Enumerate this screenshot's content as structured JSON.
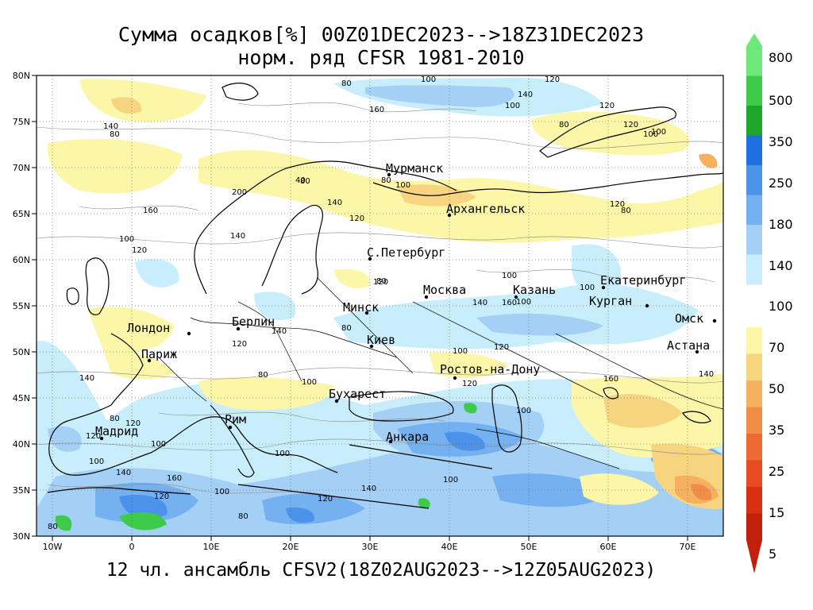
{
  "title_line1": "Сумма осадков[%] 00Z01DEC2023-->18Z31DEC2023",
  "title_line2": "норм. ряд CFSR 1981-2010",
  "subtitle": "12 чл. ансамбль CFSV2(18Z02AUG2023-->12Z05AUG2023)",
  "lat_labels": [
    "80N",
    "75N",
    "70N",
    "65N",
    "60N",
    "55N",
    "50N",
    "45N",
    "40N",
    "35N",
    "30N"
  ],
  "lon_labels": [
    "10W",
    "0",
    "10E",
    "20E",
    "30E",
    "40E",
    "50E",
    "60E",
    "70E"
  ],
  "cities": [
    {
      "name": "Мурманск"
    },
    {
      "name": "Архангельск"
    },
    {
      "name": "С.Петербург"
    },
    {
      "name": "Москва"
    },
    {
      "name": "Казань"
    },
    {
      "name": "Екатеринбург"
    },
    {
      "name": "Курган"
    },
    {
      "name": "Омск"
    },
    {
      "name": "Астана"
    },
    {
      "name": "Минск"
    },
    {
      "name": "Берлин"
    },
    {
      "name": "Лондон"
    },
    {
      "name": "Париж"
    },
    {
      "name": "Киев"
    },
    {
      "name": "Ростов-на-Дону"
    },
    {
      "name": "Бухарест"
    },
    {
      "name": "Рим"
    },
    {
      "name": "Мадрид"
    },
    {
      "name": "Анкара"
    }
  ],
  "contour_labels": [
    "100",
    "120",
    "140",
    "160",
    "80",
    "100",
    "120",
    "140",
    "80",
    "100",
    "120",
    "80",
    "100",
    "80",
    "100",
    "120",
    "140",
    "160",
    "200",
    "40",
    "80",
    "100",
    "120",
    "140",
    "80",
    "100",
    "120",
    "140",
    "160",
    "100",
    "80",
    "120",
    "100",
    "140",
    "120",
    "80",
    "100",
    "120",
    "140",
    "160",
    "100",
    "120",
    "80",
    "100",
    "140",
    "120",
    "100",
    "80",
    "120",
    "100",
    "140",
    "160",
    "120",
    "100",
    "80",
    "100",
    "120",
    "140",
    "100",
    "80"
  ],
  "colorbar": {
    "upper_levels": [
      "800",
      "500",
      "350",
      "250",
      "180",
      "140"
    ],
    "middle_level": "100",
    "lower_levels": [
      "70",
      "50",
      "35",
      "25",
      "15",
      "5"
    ],
    "upper_colors": [
      "#6ee87a",
      "#3fcb4a",
      "#1ea62b",
      "#1f6fe0",
      "#4a92ea",
      "#75b1f0",
      "#a5d0f6",
      "#c8edfb"
    ],
    "lower_colors": [
      "#fbf6a8",
      "#f7d580",
      "#f5b060",
      "#f28d48",
      "#ee6a34",
      "#e84a22",
      "#d92f12",
      "#c2200a"
    ]
  }
}
